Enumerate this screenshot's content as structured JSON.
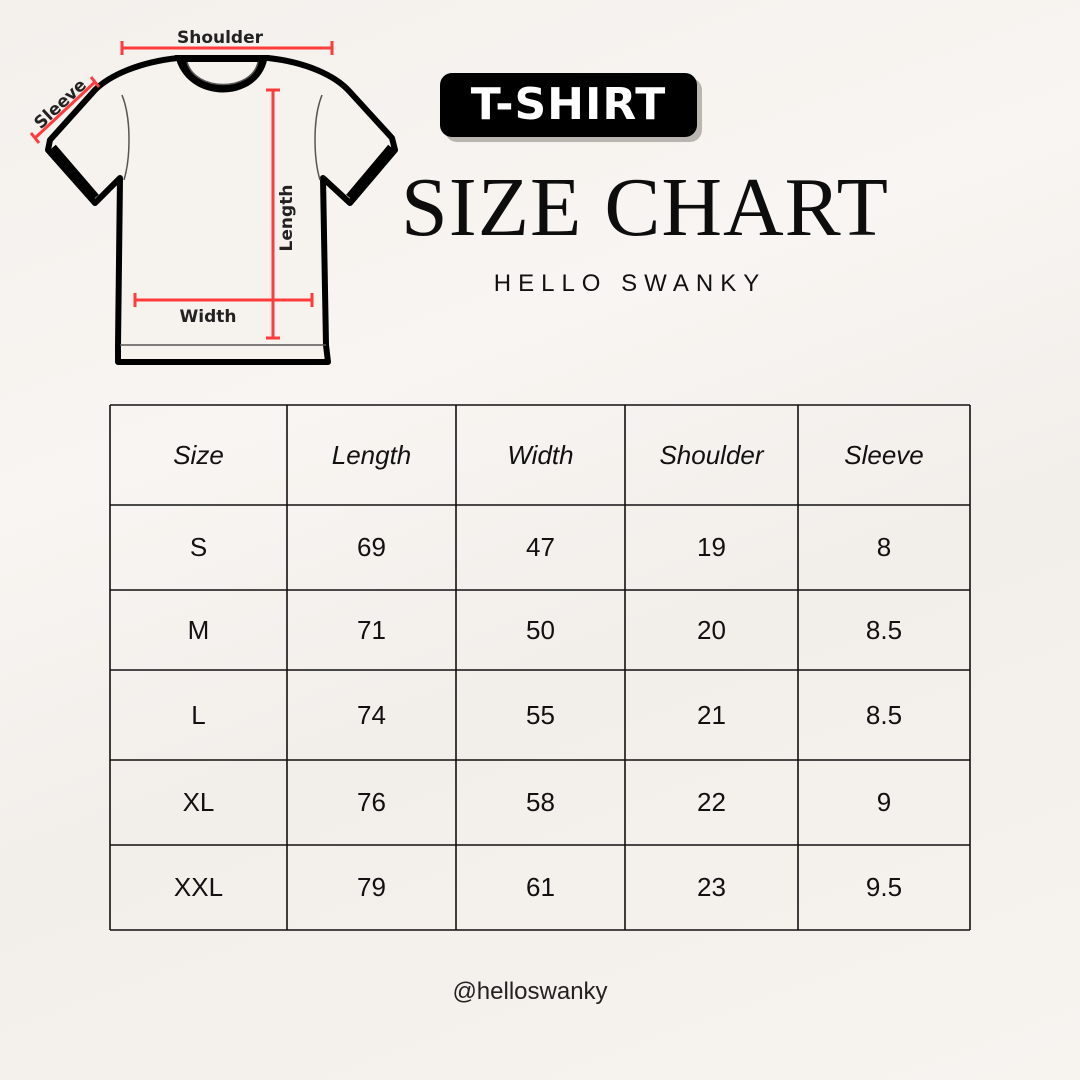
{
  "diagram": {
    "labels": {
      "shoulder": "Shoulder",
      "sleeve": "Sleeve",
      "length": "Length",
      "width": "Width"
    },
    "measure_color": "#ff3b3b"
  },
  "header": {
    "badge": "T-SHIRT",
    "title": "SIZE CHART",
    "subtitle": "HELLO SWANKY"
  },
  "table": {
    "columns": [
      "Size",
      "Length",
      "Width",
      "Shoulder",
      "Sleeve"
    ],
    "rows": [
      [
        "S",
        "69",
        "47",
        "19",
        "8"
      ],
      [
        "M",
        "71",
        "50",
        "20",
        "8.5"
      ],
      [
        "L",
        "74",
        "55",
        "21",
        "8.5"
      ],
      [
        "XL",
        "76",
        "58",
        "22",
        "9"
      ],
      [
        "XXL",
        "79",
        "61",
        "23",
        "9.5"
      ]
    ]
  },
  "footer": {
    "handle": "@helloswanky"
  }
}
